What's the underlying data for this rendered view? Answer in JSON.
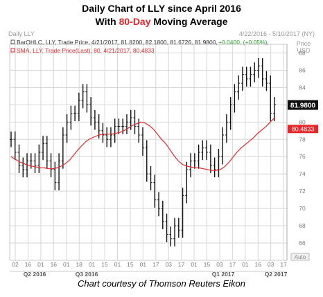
{
  "header": {
    "title_part1": "Daily Chart of LLY since April 2016",
    "title_part2_before": "With ",
    "title_highlight": "80-Day",
    "title_part2_after": " Moving Average",
    "symbol_label": "Daily LLY",
    "date_range": "4/22/2016 - 5/10/2017 (NY)",
    "price_label": "Price",
    "currency_label": "USD"
  },
  "legend": {
    "bar_text_main": "BarOHLC, LLY, Trade Price, 4/21/2017, 81.8200, 82.1800, 81.6726, 81.9800,",
    "bar_text_change": "+0.0400, (+0.05%),",
    "sma_text": "SMA, LLY, Trade Price(Last), 80, 4/21/2017, 80.4833"
  },
  "tags": {
    "last_price": "81.9800",
    "sma_value": "80.4833"
  },
  "auto_label": "Auto",
  "caption": "Chart courtesy of Thomson Reuters Eikon",
  "colors": {
    "accent": "#e8262a",
    "bars": "#111111",
    "sma": "#e8262a",
    "grid": "#d6d6d6",
    "positive": "#2a9d2a"
  },
  "chart_data": {
    "type": "line",
    "title": "Daily Chart of LLY since April 2016 With 80-Day Moving Average",
    "ylabel": "Price USD",
    "ylim": [
      64,
      89
    ],
    "y_ticks": [
      66,
      68,
      70,
      72,
      74,
      76,
      78,
      80,
      82,
      84,
      86,
      88
    ],
    "x_ticks": [
      "02",
      "16",
      "01",
      "16",
      "01",
      "18",
      "01",
      "15",
      "01",
      "15",
      "01",
      "17",
      "03",
      "17",
      "01",
      "15",
      "03",
      "17",
      "01",
      "16",
      "03",
      "17"
    ],
    "quarter_labels": [
      "Q2 2016",
      "Q3 2016",
      "Q1 2017",
      "Q2 2017"
    ],
    "grid": true,
    "series": [
      {
        "name": "BarOHLC, LLY, Trade Price",
        "style": "ohlc-bars",
        "values": [
          78,
          76.5,
          75,
          74.5,
          75.5,
          75.5,
          75,
          76.5,
          77.5,
          75.5,
          74.5,
          73,
          75.5,
          78.5,
          80,
          81,
          81,
          82.5,
          83.5,
          82,
          80.5,
          80,
          79,
          78.5,
          78,
          78.5,
          79.5,
          79.5,
          79.5,
          80,
          80.5,
          79.5,
          78.5,
          77,
          74,
          73,
          71,
          70,
          68.5,
          67,
          66.5,
          68,
          67.5,
          71.5,
          74.5,
          75.5,
          75.5,
          76.5,
          77,
          76.5,
          75,
          74.5,
          76,
          78.5,
          80,
          82,
          83.5,
          84.5,
          85.5,
          85,
          85.5,
          86,
          86.5,
          85,
          84.5,
          81,
          82
        ]
      },
      {
        "name": "SMA, LLY, Trade Price(Last), 80",
        "style": "line",
        "values": [
          76,
          75.7,
          75.4,
          75.2,
          75,
          74.9,
          74.8,
          74.7,
          74.7,
          74.6,
          74.6,
          74.7,
          74.9,
          75.2,
          75.6,
          76.2,
          76.8,
          77.3,
          77.8,
          78.1,
          78.3,
          78.5,
          78.6,
          78.6,
          78.6,
          78.7,
          78.8,
          79,
          79.3,
          79.6,
          79.8,
          80,
          79.9,
          79.6,
          79.2,
          78.6,
          78,
          77.5,
          76.8,
          76.1,
          75.5,
          75.1,
          74.9,
          74.8,
          74.7,
          74.7,
          74.6,
          74.5,
          74.4,
          74.4,
          74.5,
          74.8,
          75.3,
          75.9,
          76.5,
          77,
          77.4,
          77.8,
          78.2,
          78.7,
          79.1,
          79.5,
          80,
          80.5
        ]
      }
    ]
  }
}
